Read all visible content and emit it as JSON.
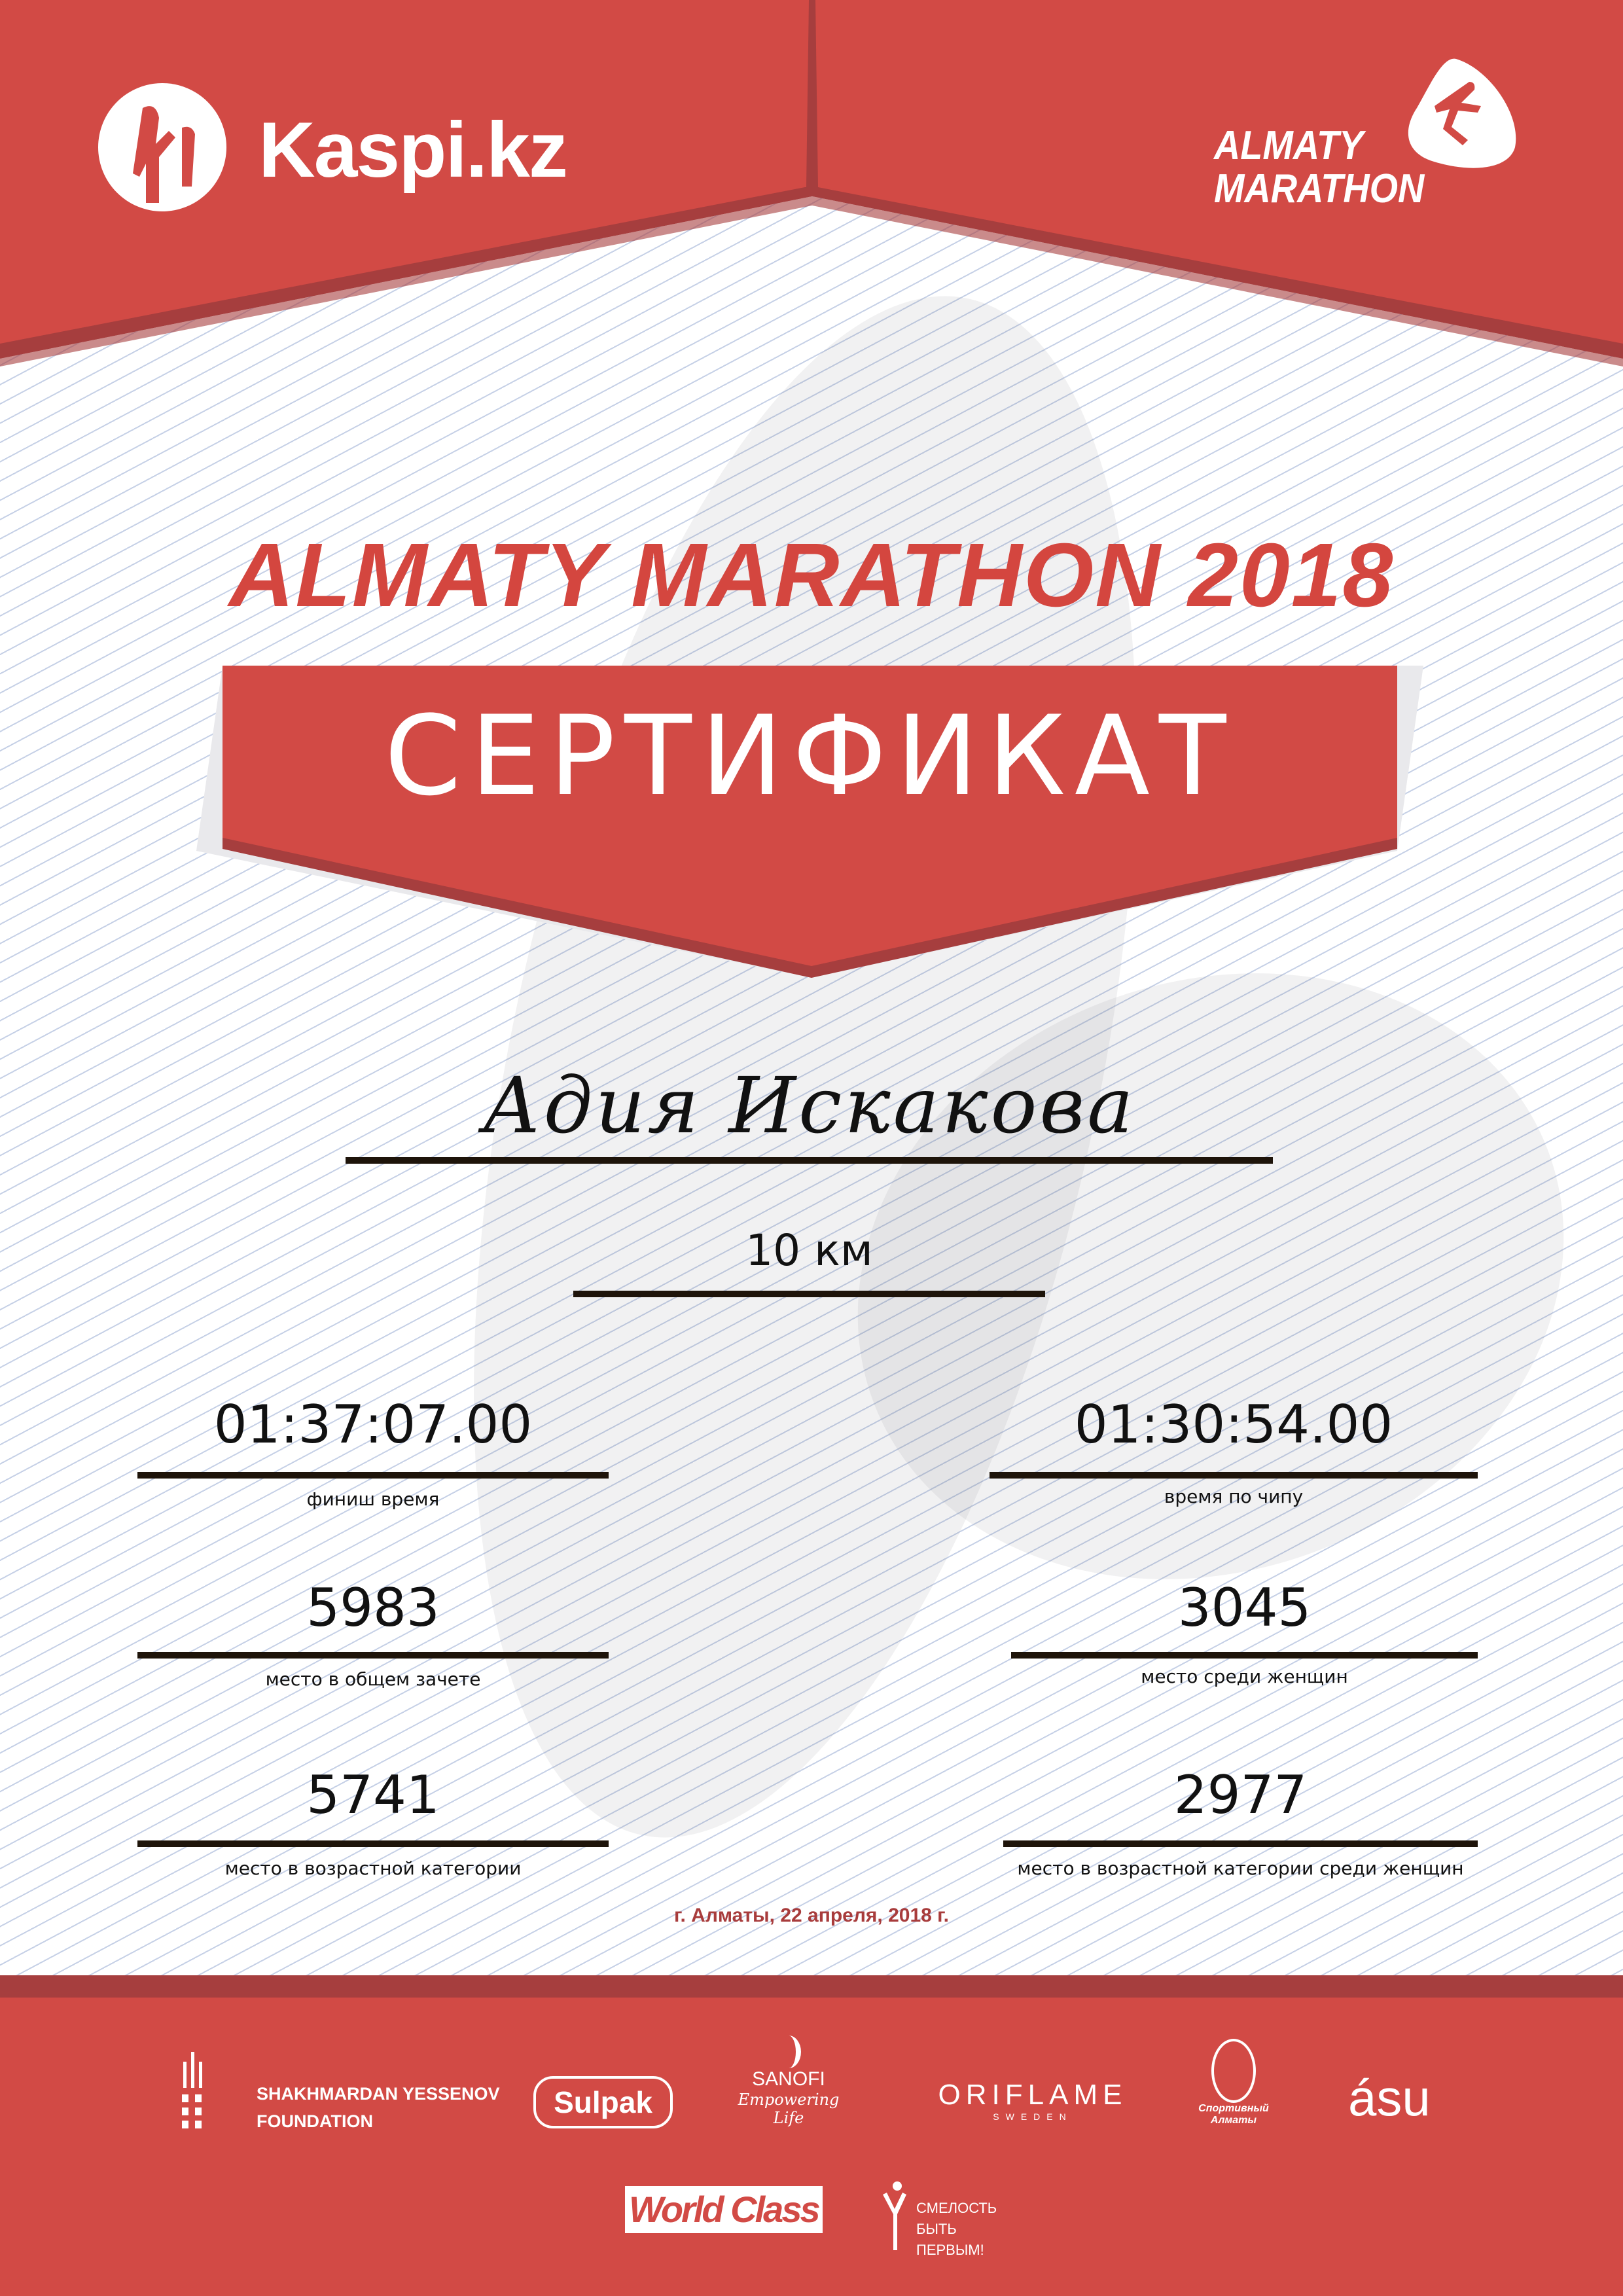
{
  "header": {
    "sponsor_logo": "Kaspi.kz",
    "event_logo_line1": "ALMATY",
    "event_logo_line2": "MARATHON"
  },
  "title": "ALMATY MARATHON 2018",
  "certificate_label": "СЕРТИФИКАТ",
  "participant": {
    "name": "Адия Искакова",
    "distance": "10 км"
  },
  "results": {
    "finish_time": {
      "value": "01:37:07.00",
      "label": "финиш время"
    },
    "chip_time": {
      "value": "01:30:54.00",
      "label": "время по чипу"
    },
    "overall_place": {
      "value": "5983",
      "label": "место в общем зачете"
    },
    "women_place": {
      "value": "3045",
      "label": "место среди женщин"
    },
    "age_place": {
      "value": "5741",
      "label": "место в возрастной категории"
    },
    "age_women_place": {
      "value": "2977",
      "label": "место в возрастной категории среди женщин"
    }
  },
  "date_line": "г. Алматы, 22 апреля, 2018 г.",
  "sponsors": {
    "yessenov_line1": "SHAKHMARDAN YESSENOV",
    "yessenov_line2": "FOUNDATION",
    "sulpak": "Sulpak",
    "sanofi": "SANOFI",
    "sanofi_tagline": "Empowering Life",
    "oriflame": "ORIFLAME",
    "oriflame_sub": "SWEDEN",
    "sport_almaty": "Спортивный Алматы",
    "asu": "ásu",
    "worldclass": "World Class",
    "smelost_line1": "СМЕЛОСТЬ",
    "smelost_line2": "БЫТЬ",
    "smelost_line3": "ПЕРВЫМ!"
  },
  "colors": {
    "brand_red": "#d24a45",
    "dark_red": "#a63e3e",
    "title_red": "#d4463f",
    "date_red": "#a83c3c"
  }
}
